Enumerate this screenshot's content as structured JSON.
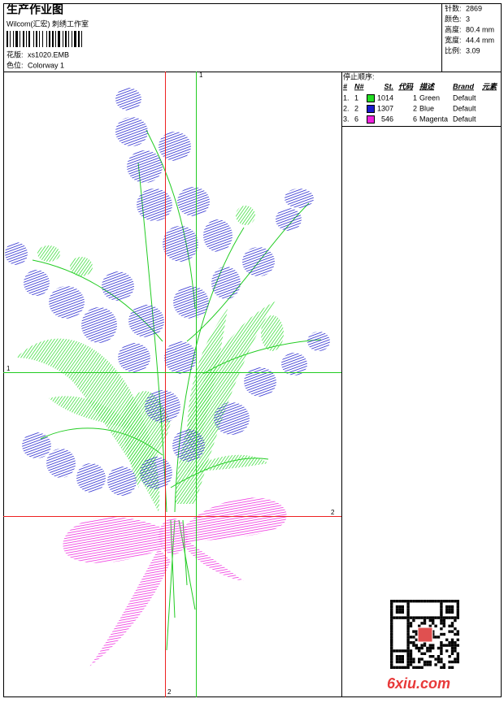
{
  "header": {
    "title": "生产作业图",
    "subtitle": "Wilcom(汇宏) 刺绣工作室",
    "design_label": "花版:",
    "design": "xs1020.EMB",
    "colorway_label": "色位:",
    "colorway": "Colorway 1"
  },
  "stats": [
    {
      "label": "针数:",
      "value": "2869"
    },
    {
      "label": "颜色:",
      "value": "3"
    },
    {
      "label": "高度:",
      "value": "80.4 mm"
    },
    {
      "label": "宽度:",
      "value": "44.4 mm"
    },
    {
      "label": "比例:",
      "value": "3.09"
    }
  ],
  "stop_sequence": {
    "title": "停止顺序:",
    "columns": [
      "#",
      "N#",
      "St.",
      "代码",
      "描述",
      "Brand",
      "元素"
    ],
    "rows": [
      {
        "index": "1.",
        "needle": "1",
        "color": "#22dd22",
        "stitches": 1014,
        "code": "1",
        "description": "Green",
        "brand": "Default"
      },
      {
        "index": "2.",
        "needle": "2",
        "color": "#1a1acc",
        "stitches": 1307,
        "code": "2",
        "description": "Blue",
        "brand": "Default"
      },
      {
        "index": "3.",
        "needle": "6",
        "color": "#ee22dd",
        "stitches": 546,
        "code": "6",
        "description": "Magenta",
        "brand": "Default"
      }
    ]
  },
  "guides": {
    "top": "1",
    "left": "1",
    "right": "2",
    "bottom": "2"
  },
  "watermark": "6xiu.com"
}
